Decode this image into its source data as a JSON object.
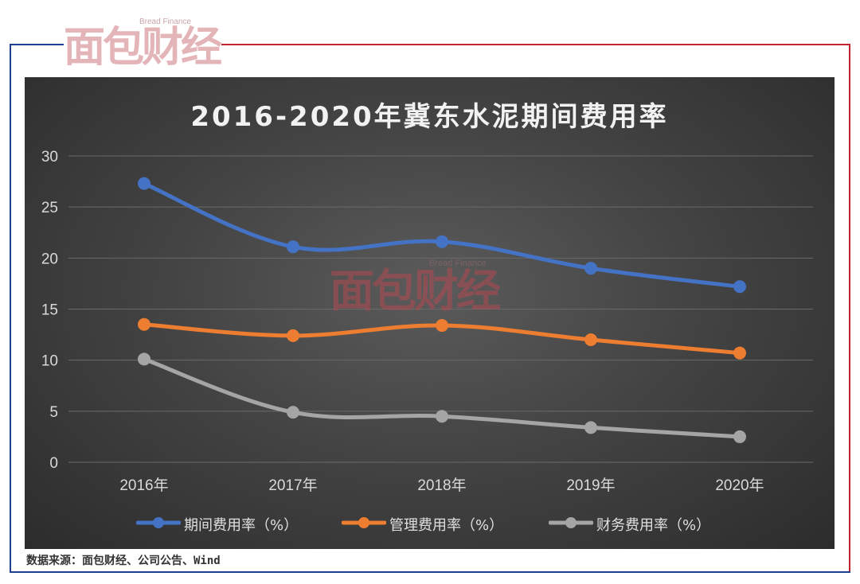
{
  "logo": {
    "main": "面包财经",
    "sub": "Bread Finance"
  },
  "watermark": {
    "main": "面包财经",
    "sub": "Bread Finance"
  },
  "source_note": "数据来源：面包财经、公司公告、Wind",
  "colors": {
    "line1": "#4472c4",
    "line2": "#ed7d31",
    "line3": "#a5a5a5"
  },
  "chart_data": {
    "type": "line",
    "title": "2016-2020年冀东水泥期间费用率",
    "xlabel": "",
    "ylabel": "",
    "categories": [
      "2016年",
      "2017年",
      "2018年",
      "2019年",
      "2020年"
    ],
    "ylim": [
      0,
      30
    ],
    "yticks": [
      0,
      5,
      10,
      15,
      20,
      25,
      30
    ],
    "grid": true,
    "smooth": true,
    "legend_position": "bottom",
    "series": [
      {
        "name": "期间费用率（%）",
        "color": "#4472c4",
        "values": [
          27.3,
          21.1,
          21.6,
          19.0,
          17.2
        ]
      },
      {
        "name": "管理费用率（%）",
        "color": "#ed7d31",
        "values": [
          13.5,
          12.4,
          13.4,
          12.0,
          10.7
        ]
      },
      {
        "name": "财务费用率（%）",
        "color": "#a5a5a5",
        "values": [
          10.1,
          4.9,
          4.5,
          3.4,
          2.5
        ]
      }
    ]
  }
}
